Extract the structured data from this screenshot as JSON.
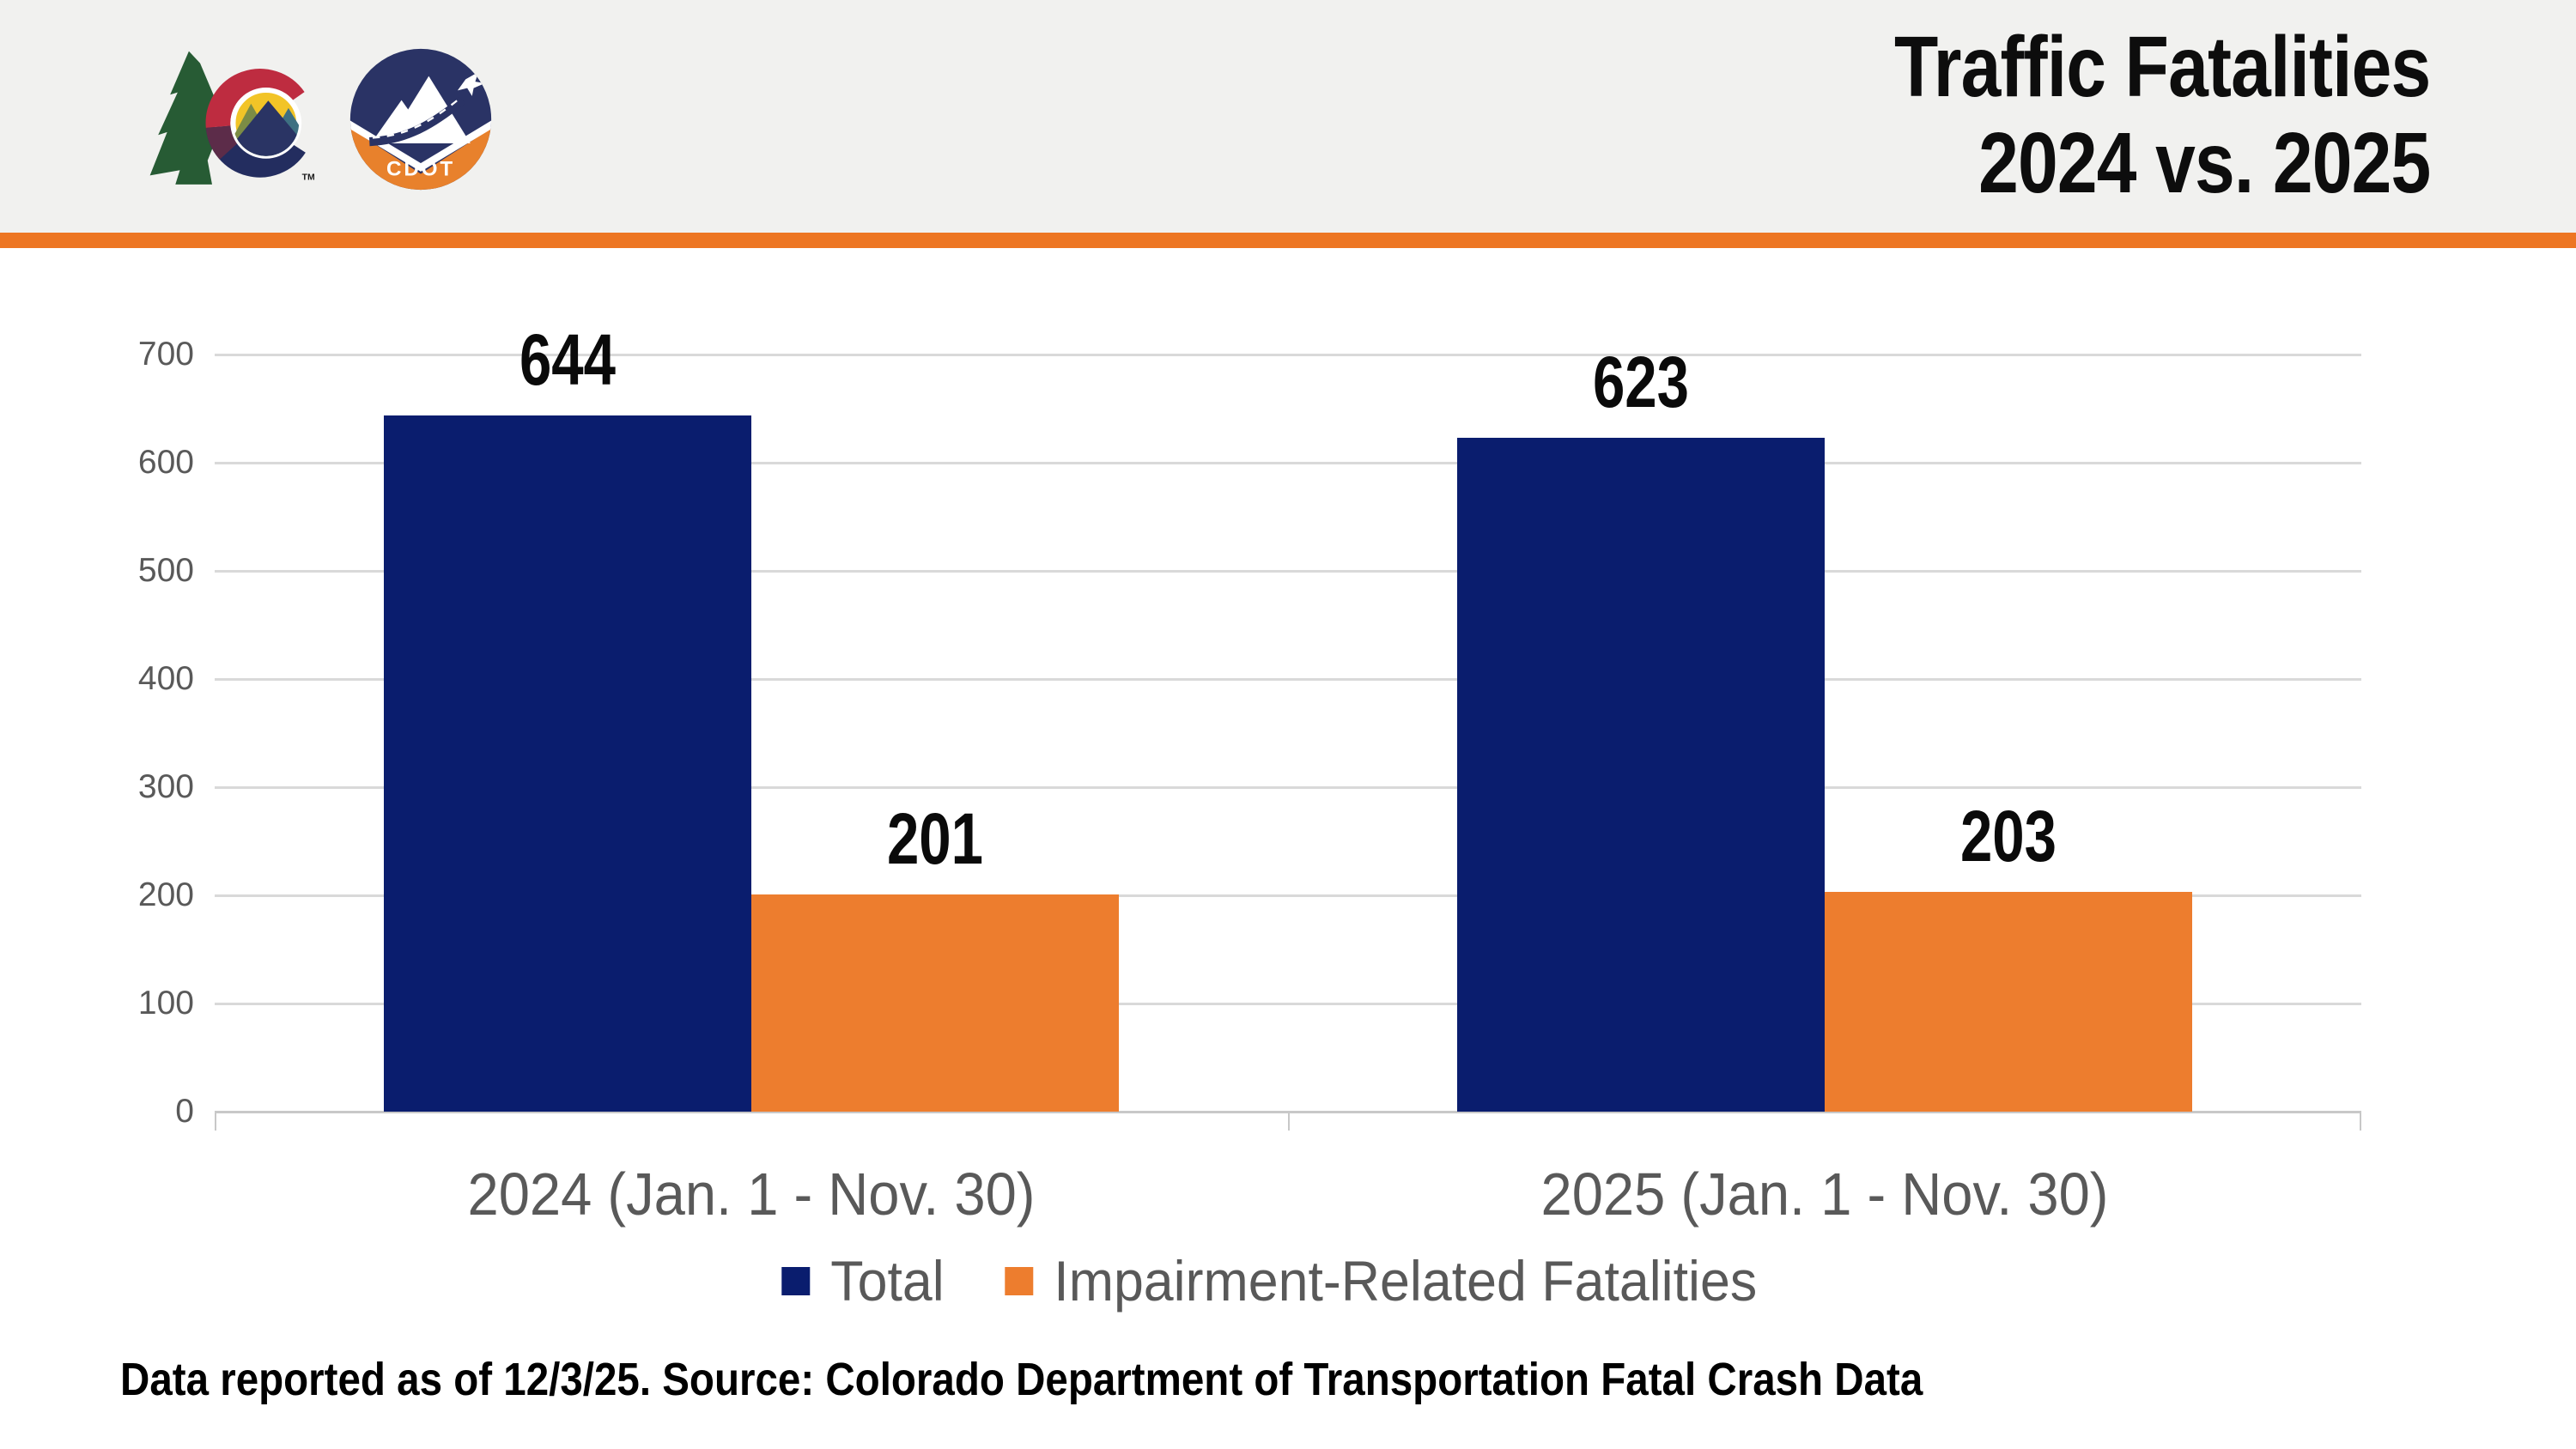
{
  "header": {
    "title_line1": "Traffic Fatalities",
    "title_line2": "2024 vs. 2025",
    "logos": {
      "colorado_tm": "TM",
      "cdot_label": "CDOT"
    }
  },
  "icons": {
    "colorado_logo": "colorado-state-co-logo",
    "cdot_logo": "cdot-mountain-road-plane-logo",
    "plane_icon": "airplane",
    "mountain_icon": "mountain",
    "road_icon": "road"
  },
  "chart_data": {
    "type": "bar",
    "title": "Traffic Fatalities 2024 vs. 2025",
    "categories": [
      "2024 (Jan. 1 - Nov. 30)",
      "2025 (Jan. 1 - Nov. 30)"
    ],
    "series": [
      {
        "name": "Total",
        "color": "#0A1D6E",
        "values": [
          644,
          623
        ]
      },
      {
        "name": "Impairment-Related Fatalities",
        "color": "#ED7D2E",
        "values": [
          201,
          203
        ]
      }
    ],
    "ylim": [
      0,
      700
    ],
    "yticks": [
      0,
      100,
      200,
      300,
      400,
      500,
      600,
      700
    ],
    "grid": true,
    "legend_position": "bottom",
    "xlabel": "",
    "ylabel": ""
  },
  "footer": {
    "note": "Data reported as of 12/3/25. Source: Colorado Department of Transportation Fatal Crash Data"
  },
  "colors": {
    "header_bg": "#F1F1EF",
    "accent_orange": "#ED7623",
    "bar_navy": "#0A1D6E",
    "bar_orange": "#ED7D2E",
    "axis_text": "#595959",
    "gridline": "#D9D9D9",
    "title_text": "#0d0d0d"
  }
}
